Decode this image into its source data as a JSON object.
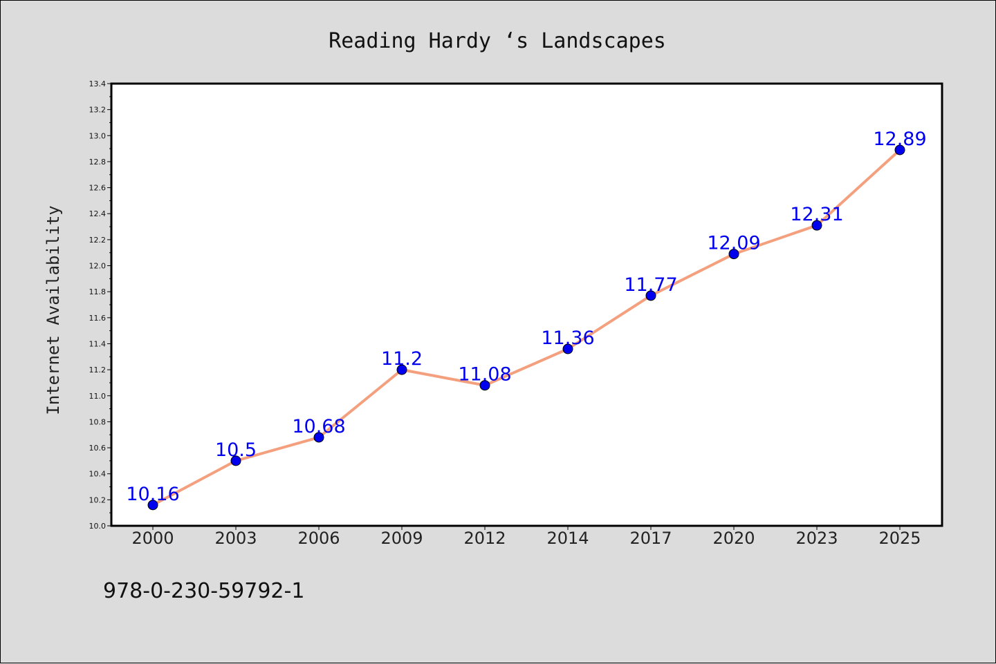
{
  "chart_data": {
    "type": "line",
    "title": "Reading Hardy ‘s Landscapes",
    "xlabel": "",
    "ylabel": "Internet Availability",
    "categories": [
      "2000",
      "2003",
      "2006",
      "2009",
      "2012",
      "2014",
      "2017",
      "2020",
      "2023",
      "2025"
    ],
    "series": [
      {
        "values": [
          10.16,
          10.5,
          10.68,
          11.2,
          11.08,
          11.36,
          11.77,
          12.09,
          12.31,
          12.89
        ],
        "data_labels": [
          "10.16",
          "10.5",
          "10.68",
          "11.2",
          "11.08",
          "11.36",
          "11.77",
          "12.09",
          "12.31",
          "12.89"
        ],
        "line_color": "#f4a07e",
        "marker_color": "#0000ee",
        "label_color": "#0000ee"
      }
    ],
    "ylim": [
      10.0,
      13.4
    ],
    "yticks": [
      "10.0",
      "10.2",
      "10.4",
      "10.6",
      "10.8",
      "11.0",
      "11.2",
      "11.4",
      "11.6",
      "11.8",
      "12.0",
      "12.2",
      "12.4",
      "12.6",
      "12.8",
      "13.0",
      "13.2",
      "13.4"
    ],
    "grid": false,
    "legend": "none",
    "annotation": "978-0-230-59792-1",
    "background_color": "#dcdcdc",
    "plot_background_color": "#ffffff"
  }
}
